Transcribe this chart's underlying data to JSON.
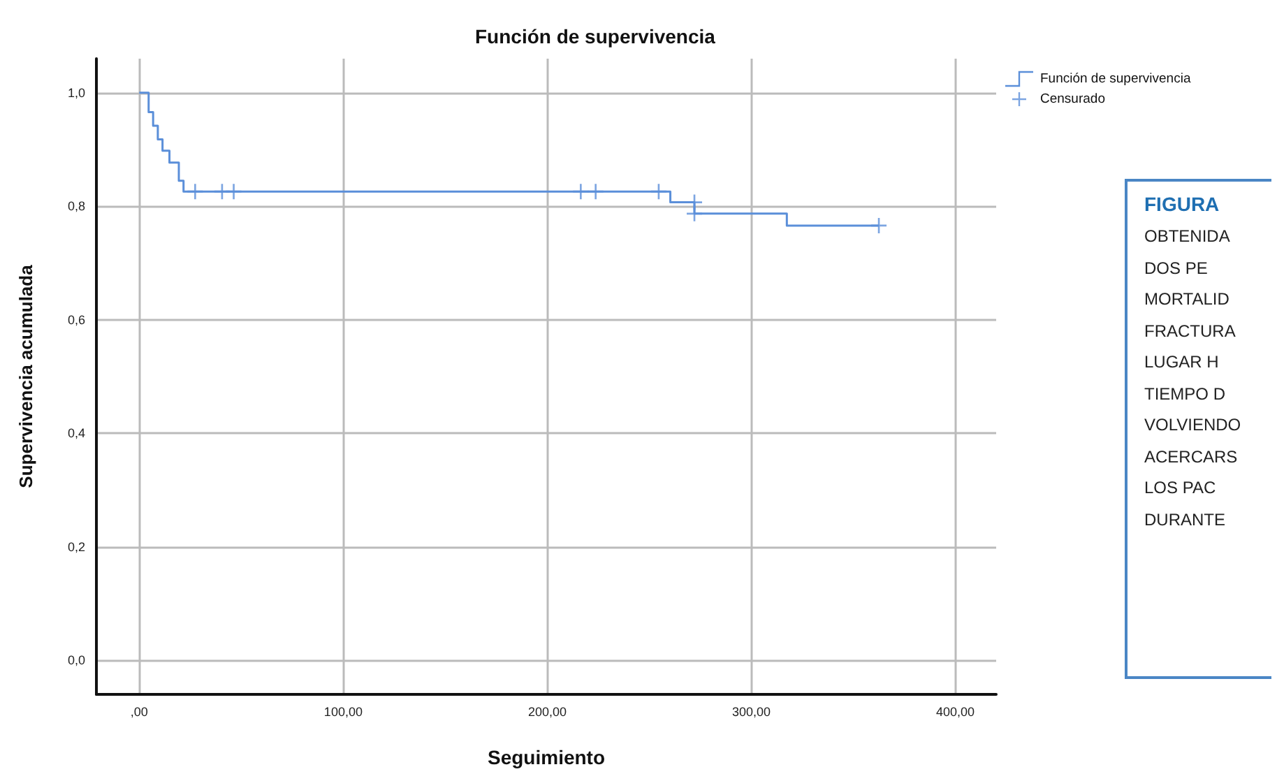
{
  "chart_data": [
    {
      "type": "step",
      "title": "Función de supervivencia",
      "xlabel": "Seguimiento",
      "ylabel": "Supervivencia acumulada",
      "xlim": [
        -21,
        420
      ],
      "xticks": [
        {
          "value": 0,
          "label": ",00"
        },
        {
          "value": 100,
          "label": "100,00"
        },
        {
          "value": 200,
          "label": "200,00"
        },
        {
          "value": 300,
          "label": "300,00"
        },
        {
          "value": 400,
          "label": "400,00"
        }
      ],
      "ylim": [
        -0.06,
        1.06
      ],
      "yticks": [
        {
          "value": 0,
          "label": "0,0"
        },
        {
          "value": 0.2,
          "label": "0,2"
        },
        {
          "value": 0.4,
          "label": "0,4"
        },
        {
          "value": 0.6,
          "label": "0,6"
        },
        {
          "value": 0.8,
          "label": "0,8"
        },
        {
          "value": 1,
          "label": "1,0"
        }
      ],
      "grid": true,
      "legend": "top right",
      "series": [
        {
          "name": "Función de supervivencia",
          "type": "step",
          "color": "#5b8fd9",
          "marker": "none",
          "x": [
            0,
            4.6,
            6.8,
            9.1,
            11.4,
            14.8,
            19.4,
            21.7,
            260.3,
            272.1,
            317.4,
            362.5
          ],
          "values": [
            1,
            0.966,
            0.942,
            0.918,
            0.898,
            0.877,
            0.845,
            0.826,
            0.807,
            0.787,
            0.766,
            0.766
          ]
        },
        {
          "name": "Censurado",
          "type": "scatter",
          "color": "#5b8fd9",
          "marker": "cross",
          "x": [
            27.4,
            40.6,
            46.3,
            216.4,
            223.7,
            254.6,
            272.1,
            272.1,
            362.5
          ],
          "values": [
            0.826,
            0.826,
            0.826,
            0.826,
            0.826,
            0.826,
            0.807,
            0.787,
            0.766
          ]
        }
      ]
    },
    {
      "type": "other",
      "title": "FIGURA",
      "annotations": [
        "OBTENIDA",
        "DOS PE",
        "MORTALID",
        "FRACTURA",
        "LUGAR H",
        "TIEMPO D",
        "VOLVIENDO",
        "ACERCARS",
        "LOS PAC",
        "DURANTE"
      ]
    }
  ]
}
